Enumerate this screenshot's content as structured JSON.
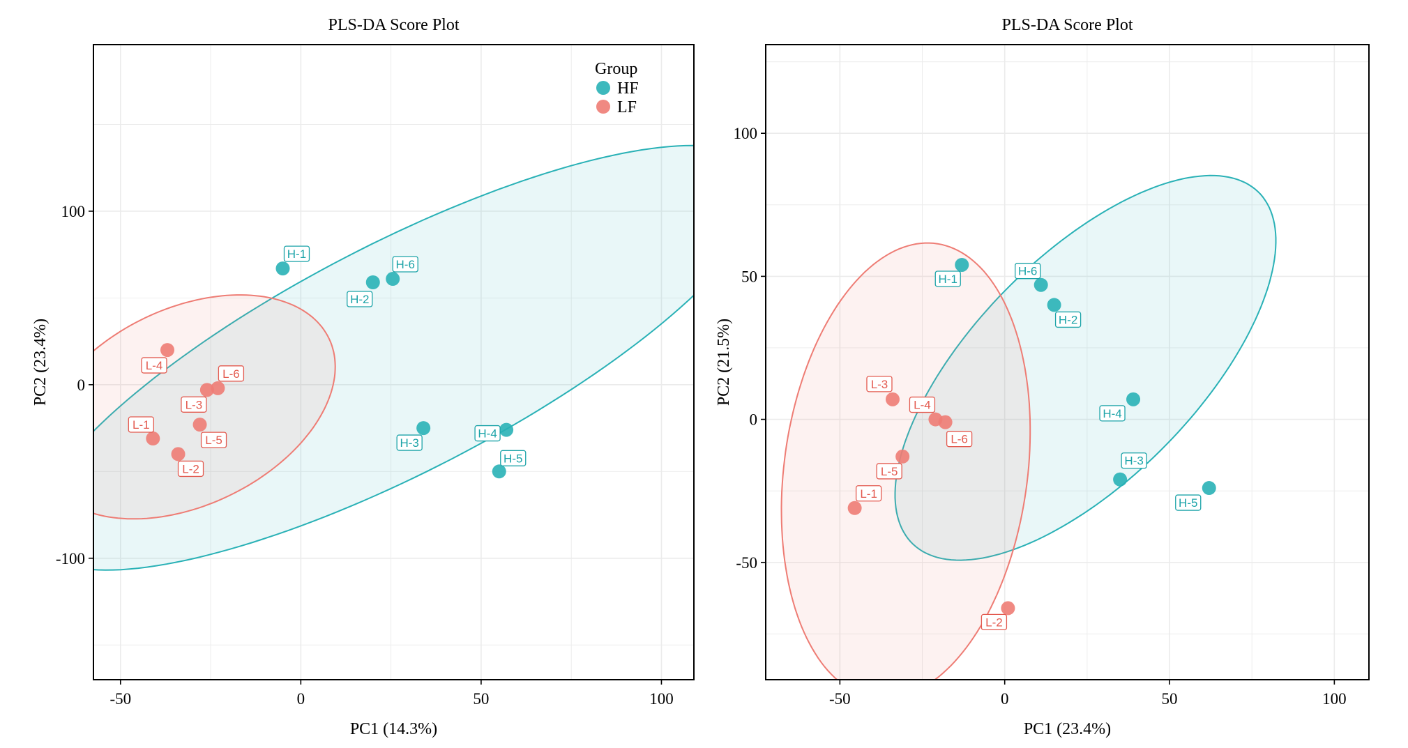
{
  "figure": {
    "background": "#ffffff",
    "grid_color": "#ebebeb",
    "axis_color": "#000000"
  },
  "groups": [
    {
      "name": "HF",
      "color": "#29b1b6",
      "label_color": "#1ba3a8"
    },
    {
      "name": "LF",
      "color": "#ee7c74",
      "label_color": "#e35a4f"
    }
  ],
  "legend": {
    "title": "Group",
    "labels": [
      "HF",
      "LF"
    ],
    "placement": "inside-top-right"
  },
  "chart_data": [
    {
      "type": "scatter",
      "title": "PLS-DA Score Plot",
      "xlabel": "PC1 (14.3%)",
      "ylabel": "PC2 (23.4%)",
      "xlim": [
        -57.5,
        109
      ],
      "ylim": [
        -170,
        196
      ],
      "xticks": [
        -50,
        0,
        50,
        100
      ],
      "xtick_labels": [
        "-50",
        "0",
        "50",
        "100"
      ],
      "yticks": [
        -100,
        0,
        100
      ],
      "ytick_labels": [
        "-100",
        "0",
        "100"
      ],
      "grid": true,
      "has_legend": true,
      "series": [
        {
          "name": "HF",
          "points": [
            {
              "label": "H-1",
              "x": -5,
              "y": 67
            },
            {
              "label": "H-2",
              "x": 20,
              "y": 59
            },
            {
              "label": "H-6",
              "x": 25.5,
              "y": 61
            },
            {
              "label": "H-3",
              "x": 34,
              "y": -25
            },
            {
              "label": "H-4",
              "x": 57,
              "y": -26
            },
            {
              "label": "H-5",
              "x": 55,
              "y": -50
            }
          ],
          "ellipse": {
            "cx": 27.3,
            "cy": 15.5,
            "rx": 151,
            "ry": 49,
            "angle_deg": 51.7
          }
        },
        {
          "name": "LF",
          "points": [
            {
              "label": "L-4",
              "x": -37,
              "y": 20
            },
            {
              "label": "L-6",
              "x": -23,
              "y": -2
            },
            {
              "label": "L-3",
              "x": -26,
              "y": -3
            },
            {
              "label": "L-5",
              "x": -28,
              "y": -23
            },
            {
              "label": "L-1",
              "x": -41,
              "y": -31
            },
            {
              "label": "L-2",
              "x": -34,
              "y": -40
            }
          ],
          "ellipse": {
            "cx": -31.6,
            "cy": -12.8,
            "rx": 67,
            "ry": 37,
            "angle_deg": 71.2
          }
        }
      ]
    },
    {
      "type": "scatter",
      "title": "PLS-DA Score Plot",
      "xlabel": "PC1 (23.4%)",
      "ylabel": "PC2 (21.5%)",
      "xlim": [
        -72.5,
        110.5
      ],
      "ylim": [
        -91,
        131
      ],
      "xticks": [
        -50,
        0,
        50,
        100
      ],
      "xtick_labels": [
        "-50",
        "0",
        "50",
        "100"
      ],
      "yticks": [
        -50,
        0,
        50,
        100
      ],
      "ytick_labels": [
        "-50",
        "0",
        "50",
        "100"
      ],
      "grid": true,
      "has_legend": false,
      "series": [
        {
          "name": "HF",
          "points": [
            {
              "label": "H-1",
              "x": -13,
              "y": 54
            },
            {
              "label": "H-6",
              "x": 11,
              "y": 47
            },
            {
              "label": "H-2",
              "x": 15,
              "y": 40
            },
            {
              "label": "H-4",
              "x": 39,
              "y": 7
            },
            {
              "label": "H-3",
              "x": 35,
              "y": -21
            },
            {
              "label": "H-5",
              "x": 62,
              "y": -24
            }
          ],
          "ellipse": {
            "cx": 24.5,
            "cy": 18,
            "rx": 81,
            "ry": 36,
            "angle_deg": 51.5
          }
        },
        {
          "name": "LF",
          "points": [
            {
              "label": "L-3",
              "x": -34,
              "y": 7
            },
            {
              "label": "L-4",
              "x": -21,
              "y": 0
            },
            {
              "label": "L-6",
              "x": -18,
              "y": -1
            },
            {
              "label": "L-5",
              "x": -31,
              "y": -13
            },
            {
              "label": "L-1",
              "x": -45.5,
              "y": -31
            },
            {
              "label": "L-2",
              "x": 1,
              "y": -66
            }
          ],
          "ellipse": {
            "cx": -30,
            "cy": -18,
            "rx": 80,
            "ry": 37,
            "angle_deg": 84
          }
        }
      ]
    }
  ]
}
